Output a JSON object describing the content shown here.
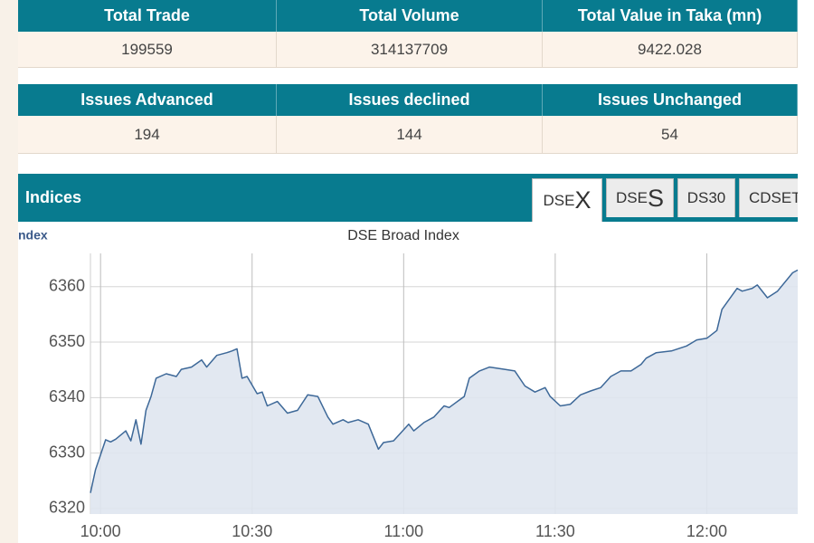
{
  "summary_table": {
    "headers": [
      "Total Trade",
      "Total Volume",
      "Total Value in Taka (mn)"
    ],
    "values": [
      199559,
      314137709,
      9422.028
    ]
  },
  "issues_table": {
    "headers": [
      "Issues Advanced",
      "Issues declined",
      "Issues Unchanged"
    ],
    "values": [
      194,
      144,
      54
    ]
  },
  "indices": {
    "title": "Indices",
    "tabs": [
      [
        "DSE",
        "X"
      ],
      [
        "DSE",
        "S"
      ],
      "DS30",
      "CDSET"
    ]
  },
  "chart_data": {
    "type": "line",
    "label": "ndex",
    "title": "DSE Broad Index",
    "color": "#3d6898",
    "fill": "#dfe6ef",
    "x": [
      "09:58",
      "09:59",
      "10:01",
      "10:02",
      "10:03",
      "10:05",
      "10:06",
      "10:07",
      "10:08",
      "10:09",
      "10:10",
      "10:11",
      "10:13",
      "10:15",
      "10:16",
      "10:18",
      "10:20",
      "10:21",
      "10:23",
      "10:25",
      "10:26",
      "10:27",
      "10:28",
      "10:29",
      "10:31",
      "10:32",
      "10:33",
      "10:35",
      "10:37",
      "10:39",
      "10:41",
      "10:43",
      "10:45",
      "10:46",
      "10:48",
      "10:49",
      "10:51",
      "10:53",
      "10:55",
      "10:56",
      "10:58",
      "11:01",
      "11:02",
      "11:04",
      "11:06",
      "11:08",
      "11:09",
      "11:12",
      "11:13",
      "11:15",
      "11:17",
      "11:20",
      "11:22",
      "11:24",
      "11:26",
      "11:28",
      "11:29",
      "11:31",
      "11:33",
      "11:35",
      "11:37",
      "11:39",
      "11:41",
      "11:43",
      "11:45",
      "11:47",
      "11:48",
      "11:50",
      "11:53",
      "11:56",
      "11:58",
      "12:00",
      "12:02",
      "12:03",
      "12:06",
      "12:07",
      "12:09",
      "12:10",
      "12:12",
      "12:14",
      "12:17",
      "12:18"
    ],
    "values": [
      6322.8,
      6327,
      6332.4,
      6332,
      6332.5,
      6334,
      6332.2,
      6336,
      6331.6,
      6337.7,
      6340.2,
      6343.5,
      6344.3,
      6343.8,
      6345.1,
      6345.5,
      6346.8,
      6345.5,
      6347.6,
      6348.1,
      6348.4,
      6348.8,
      6343.5,
      6343.8,
      6340.7,
      6341,
      6338.5,
      6339.3,
      6337.2,
      6337.7,
      6340.5,
      6340.2,
      6336.5,
      6335.2,
      6336,
      6335.5,
      6336,
      6335.2,
      6330.7,
      6331.9,
      6332.2,
      6335.2,
      6334,
      6335.5,
      6336.5,
      6338.5,
      6338.2,
      6340.2,
      6343.5,
      6344.8,
      6345.5,
      6345.1,
      6344.8,
      6342.1,
      6341,
      6341.8,
      6340.2,
      6338.5,
      6338.8,
      6340.5,
      6341.2,
      6341.8,
      6343.8,
      6344.8,
      6344.8,
      6346,
      6347.1,
      6348.1,
      6348.4,
      6349.3,
      6350.4,
      6350.7,
      6352.1,
      6355.9,
      6359.7,
      6359.2,
      6359.7,
      6360.3,
      6358,
      6359.2,
      6362.5,
      6363
    ],
    "xlim": [
      "09:58",
      "12:18"
    ],
    "xticks": [
      "10:00",
      "10:30",
      "11:00",
      "11:30",
      "12:00"
    ],
    "ylim": [
      6319,
      6366
    ],
    "yticks": [
      6320,
      6330,
      6340,
      6350,
      6360
    ],
    "grid": true
  }
}
